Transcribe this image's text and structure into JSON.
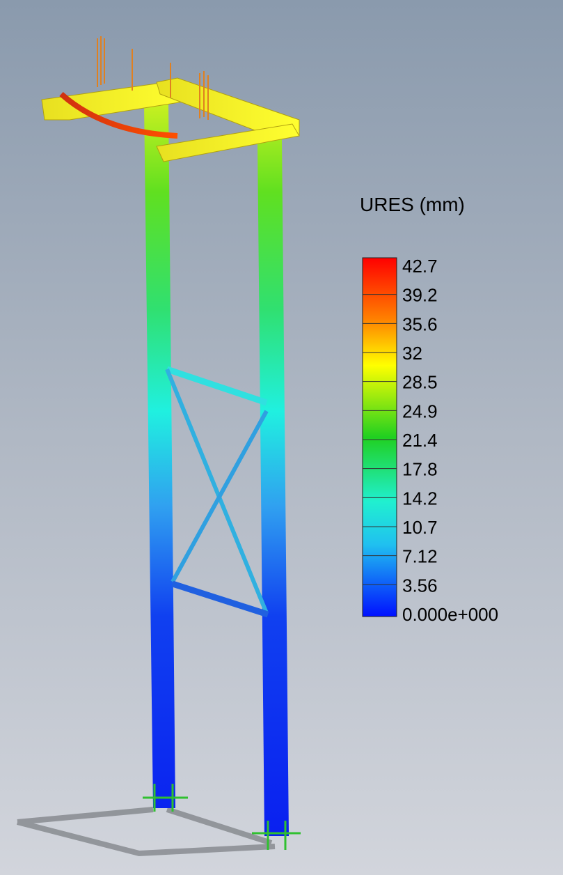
{
  "legend": {
    "title": "URES (mm)",
    "labels": [
      "42.7",
      "39.2",
      "35.6",
      "32",
      "28.5",
      "24.9",
      "21.4",
      "17.8",
      "14.2",
      "10.7",
      "7.12",
      "3.56",
      "0.000e+000"
    ]
  }
}
